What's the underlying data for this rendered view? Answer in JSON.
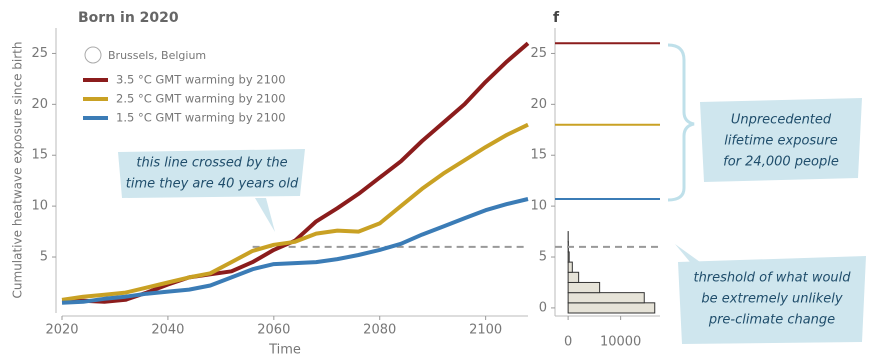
{
  "chart_data": [
    {
      "type": "line",
      "title": "Born in 2020",
      "location": "Brussels, Belgium",
      "xlabel": "Time",
      "ylabel": "Cumulative heatwave exposure since birth",
      "x": [
        2020,
        2024,
        2028,
        2032,
        2036,
        2040,
        2044,
        2048,
        2052,
        2056,
        2060,
        2064,
        2068,
        2072,
        2076,
        2080,
        2084,
        2088,
        2092,
        2096,
        2100,
        2104,
        2108
      ],
      "series": [
        {
          "name": "3.5 °C GMT warming by 2100",
          "color": "#8b1c1c",
          "values": [
            0.7,
            0.7,
            0.6,
            0.8,
            1.5,
            2.3,
            3.0,
            3.3,
            3.6,
            4.5,
            5.7,
            6.6,
            8.5,
            9.8,
            11.2,
            12.8,
            14.4,
            16.4,
            18.2,
            20.0,
            22.2,
            24.2,
            26.0
          ]
        },
        {
          "name": "2.5 °C GMT warming by 2100",
          "color": "#c9a124",
          "values": [
            0.8,
            1.1,
            1.3,
            1.5,
            2.0,
            2.5,
            3.0,
            3.4,
            4.5,
            5.6,
            6.2,
            6.5,
            7.3,
            7.6,
            7.5,
            8.3,
            10.0,
            11.7,
            13.2,
            14.5,
            15.8,
            17.0,
            18.0
          ]
        },
        {
          "name": "1.5 °C GMT warming by 2100",
          "color": "#3b7cb6",
          "values": [
            0.5,
            0.6,
            0.9,
            1.1,
            1.4,
            1.6,
            1.8,
            2.2,
            3.0,
            3.8,
            4.3,
            4.4,
            4.5,
            4.8,
            5.2,
            5.7,
            6.3,
            7.2,
            8.0,
            8.8,
            9.6,
            10.2,
            10.7
          ]
        }
      ],
      "threshold": 6,
      "annotation": [
        "this line crossed by the",
        "time they are 40 years old"
      ],
      "xlim": [
        2020,
        2108
      ],
      "ylim": [
        -0.5,
        27.5
      ],
      "xticks": [
        2020,
        2040,
        2060,
        2080,
        2100
      ],
      "yticks": [
        5,
        10,
        15,
        20,
        25
      ]
    },
    {
      "type": "histogram",
      "panel_label": "f",
      "orientation": "horizontal",
      "color": "#e6e3d8",
      "bins": [
        -0.5,
        0.5,
        1.5,
        2.5,
        3.5,
        4.5,
        5.5,
        6.5,
        7.5
      ],
      "counts": [
        16500,
        14500,
        6000,
        2000,
        800,
        200,
        50,
        20
      ],
      "hlines": [
        {
          "value": 26.0,
          "color": "#8b1c1c"
        },
        {
          "value": 18.0,
          "color": "#c9a124"
        },
        {
          "value": 10.7,
          "color": "#3b7cb6"
        }
      ],
      "threshold": 6,
      "annotations": [
        [
          "Unprecedented",
          "lifetime exposure",
          "for 24,000 people"
        ],
        [
          "threshold of what would",
          "be extremely unlikely",
          "pre-climate change"
        ]
      ],
      "xlim": [
        -2500,
        17500
      ],
      "ylim": [
        -0.5,
        27.5
      ],
      "xticks": [
        0,
        10000
      ],
      "yticks": [
        0,
        5,
        10,
        15,
        20,
        25
      ]
    }
  ]
}
